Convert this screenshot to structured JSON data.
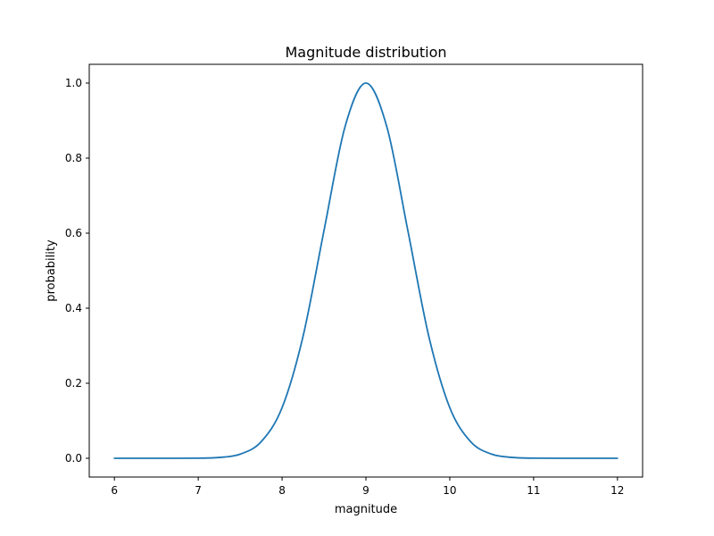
{
  "chart_data": {
    "type": "line",
    "title": "Magnitude distribution",
    "xlabel": "magnitude",
    "ylabel": "probability",
    "xlim": [
      5.7,
      12.3
    ],
    "ylim": [
      -0.05,
      1.05
    ],
    "xticks": [
      6,
      7,
      8,
      9,
      10,
      11,
      12
    ],
    "xtick_labels": [
      "6",
      "7",
      "8",
      "9",
      "10",
      "11",
      "12"
    ],
    "yticks": [
      0.0,
      0.2,
      0.4,
      0.6,
      0.8,
      1.0
    ],
    "ytick_labels": [
      "0.0",
      "0.2",
      "0.4",
      "0.6",
      "0.8",
      "1.0"
    ],
    "grid": false,
    "series": [
      {
        "color": "#1f77b4",
        "x": [
          6.0,
          6.5,
          7.0,
          7.25,
          7.5,
          7.75,
          8.0,
          8.25,
          8.5,
          8.75,
          9.0,
          9.25,
          9.5,
          9.75,
          10.0,
          10.25,
          10.5,
          10.75,
          11.0,
          11.5,
          12.0
        ],
        "y": [
          0.0,
          0.0,
          0.0003,
          0.0022,
          0.011,
          0.044,
          0.135,
          0.325,
          0.607,
          0.883,
          1.0,
          0.883,
          0.607,
          0.325,
          0.135,
          0.044,
          0.011,
          0.0022,
          0.0003,
          0.0,
          0.0
        ]
      }
    ]
  }
}
